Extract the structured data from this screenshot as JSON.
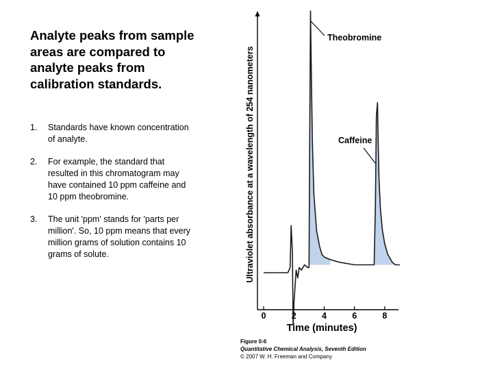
{
  "slide": {
    "heading": "Analyte peaks from sample areas are compared to analyte peaks from calibration standards.",
    "points": [
      {
        "num": "1.",
        "text": "Standards have known concentration of analyte."
      },
      {
        "num": "2.",
        "text": "For example, the standard that resulted in this chromatogram may have  contained 10 ppm caffeine and 10 ppm theobromine."
      },
      {
        "num": "3.",
        "text": "The unit 'ppm' stands for 'parts per million'.  So, 10 ppm means that every million grams of solution contains 10 grams of solute."
      }
    ]
  },
  "chart_data": {
    "type": "line",
    "xlabel": "Time (minutes)",
    "ylabel": "Ultraviolet absorbance at a wavelength of 254 nanometers",
    "xlim": [
      0,
      9
    ],
    "ylim": [
      -0.35,
      1.0
    ],
    "xticks": [
      0,
      2,
      4,
      6,
      8
    ],
    "x_tick_labels": [
      "0",
      "2",
      "4",
      "6",
      "8"
    ],
    "annotations": [
      "Theobromine",
      "Caffeine"
    ],
    "fill_color": "#bfd3ea",
    "line_color": "#1a1a1a",
    "series": [
      {
        "x": [
          0,
          1.3,
          1.6,
          1.75,
          1.82,
          1.9,
          1.95,
          2.0,
          2.08,
          2.15,
          2.25,
          2.35,
          2.5,
          2.7,
          2.9,
          3.0,
          3.05,
          3.1,
          3.15,
          3.22,
          3.32,
          3.5,
          3.7,
          3.85,
          4.0,
          4.4,
          5.0,
          6.0,
          7.0,
          7.3,
          7.38,
          7.45,
          7.52,
          7.55,
          7.62,
          7.72,
          7.85,
          8.0,
          8.2,
          8.5,
          8.7,
          9.0
        ],
        "y": [
          0.0,
          0.0,
          0.0,
          0.02,
          0.18,
          0.08,
          -0.2,
          -0.12,
          -0.05,
          0.01,
          -0.02,
          0.02,
          0.01,
          0.03,
          0.02,
          0.02,
          0.55,
          1.0,
          0.78,
          0.5,
          0.3,
          0.16,
          0.1,
          0.07,
          0.06,
          0.05,
          0.04,
          0.03,
          0.03,
          0.03,
          0.25,
          0.6,
          0.65,
          0.55,
          0.36,
          0.24,
          0.16,
          0.11,
          0.07,
          0.04,
          0.03,
          0.03
        ]
      }
    ],
    "fills": [
      {
        "name": "Theobromine",
        "x_range": [
          3.0,
          4.4
        ]
      },
      {
        "name": "Caffeine",
        "x_range": [
          7.3,
          9.0
        ]
      }
    ]
  },
  "caption": {
    "line1": "Figure 0-6",
    "line2": "Quantitative Chemical Analysis, Seventh Edition",
    "line3": "© 2007 W. H. Freeman and Company"
  }
}
